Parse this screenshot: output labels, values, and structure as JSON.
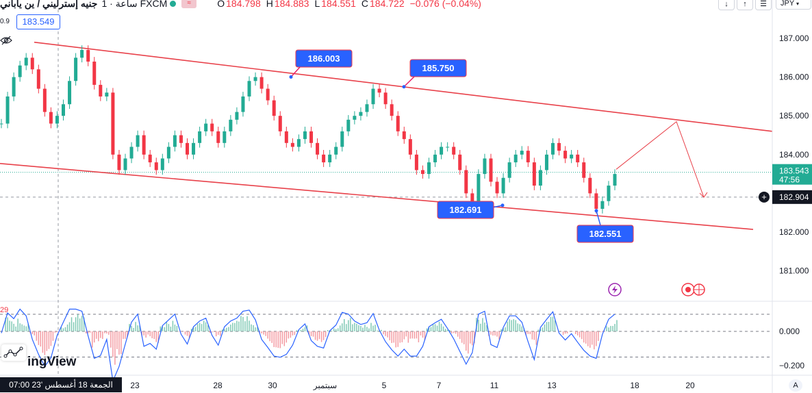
{
  "header": {
    "symbol": "جنيه إسترليني / ين ياباني",
    "timeframe": "1 · ساعة",
    "source": "FXCM",
    "pill_icon": "waves-icon",
    "open_label": "O",
    "open": "184.798",
    "high_label": "H",
    "high": "184.883",
    "low_label": "L",
    "low": "184.551",
    "close_label": "C",
    "close": "184.722",
    "change": "−0.076 (−0.04%)"
  },
  "price_box": "183.549",
  "left_label": "0.9",
  "top_buttons": [
    "↓",
    "↑",
    "☰"
  ],
  "currency": "JPY",
  "watermark": "ingView",
  "crosshair_date": "الجمعة 18 أغسطس '23   07:00",
  "auto_button": "A",
  "colors": {
    "up": "#22ab94",
    "down": "#f23645",
    "channel": "#e8414a",
    "accent": "#2962ff",
    "oscillator": "#2962ff"
  },
  "chart_data": [
    {
      "type": "candlestick",
      "ylim": [
        180.5,
        187.4
      ],
      "y_ticks": [
        "187.000",
        "186.000",
        "185.000",
        "184.000",
        "183.000",
        "182.000",
        "181.000"
      ],
      "y_tick_values": [
        187,
        186,
        185,
        184,
        183,
        182,
        181
      ],
      "x_ticks": [
        "23",
        "28",
        "30",
        "سبتمبر",
        "5",
        "7",
        "11",
        "13",
        "18",
        "20"
      ],
      "current_price": "183.543",
      "countdown": "47:56",
      "crosshair_price": "182.904",
      "channel_upper": {
        "from": [
          "2023-08-18",
          186.9
        ],
        "to": [
          "2023-09-20",
          184.6
        ]
      },
      "channel_lower": {
        "from": [
          "2023-08-18",
          183.77
        ],
        "to": [
          "2023-09-20",
          182.07
        ]
      },
      "annotations": [
        {
          "label": "186.003",
          "value": 186.003
        },
        {
          "label": "185.750",
          "value": 185.75
        },
        {
          "label": "182.691",
          "value": 182.691
        },
        {
          "label": "182.551",
          "value": 182.551
        }
      ],
      "projection_path": [
        183.62,
        184.85,
        182.9
      ],
      "series": [
        {
          "values": [
            184.8,
            185.5,
            186.0,
            186.3,
            186.5,
            186.2,
            185.7,
            185.1,
            184.8,
            185.0,
            185.3,
            185.9,
            186.5,
            186.7,
            186.4,
            185.8,
            185.5,
            185.6,
            184.0,
            183.6,
            183.9,
            184.2,
            184.5,
            184.0,
            183.8,
            183.6,
            183.9,
            184.2,
            184.5,
            184.3,
            184.0,
            184.3,
            184.6,
            184.8,
            184.6,
            184.3,
            184.6,
            184.9,
            185.1,
            185.5,
            185.9,
            186.0,
            185.7,
            185.4,
            185.0,
            184.6,
            184.3,
            184.2,
            184.4,
            184.6,
            184.3,
            184.0,
            183.8,
            184.0,
            184.2,
            184.6,
            184.9,
            185.0,
            185.1,
            185.3,
            185.7,
            185.6,
            185.3,
            185.0,
            184.6,
            184.4,
            184.0,
            183.6,
            183.5,
            183.8,
            184.0,
            184.2,
            184.2,
            184.0,
            183.6,
            183.0,
            182.8,
            183.5,
            183.9,
            183.3,
            183.0,
            183.4,
            183.8,
            184.0,
            184.1,
            183.8,
            183.2,
            183.6,
            184.0,
            184.3,
            184.1,
            183.9,
            184.0,
            183.8,
            183.4,
            183.0,
            182.6,
            182.8,
            183.2,
            183.5
          ]
        }
      ]
    },
    {
      "type": "oscillator",
      "ylim": [
        -0.23,
        0.12
      ],
      "y_ticks": [
        "0.000",
        "−0.200"
      ],
      "y_tick_values": [
        0,
        -0.2
      ],
      "levels": [
        0.1,
        -0.15
      ],
      "edge_label": "29"
    }
  ]
}
